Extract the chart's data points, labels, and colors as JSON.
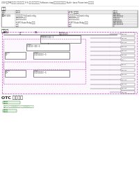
{
  "title_breadcrumb": "2023奔腾M9维修手册 发动机控制系统 V-6-引擎 发动机控制系统 Software-map关于维修说明及维修手册 Audi+ base Powertrain发动机控制",
  "section1_title": "概述",
  "section2_title": "电路图",
  "section3_title": "OTC 确认程序",
  "table_code": "P26F100",
  "table_desc": "后轮和发动机 FuCrank relay回路开路或者短路断路 KUPT State Relay关闭动作消除",
  "step1_label": "第步：",
  "step1_text": "如以下不能修复，请上报到售后服务技支中心。",
  "step2_label": "第步：",
  "bg_color": "#ffffff",
  "border_color": "#cccccc",
  "table_border": "#aaaaaa",
  "text_color": "#222222",
  "green_color": "#2d7a2d",
  "diagram_border": "#cc44cc",
  "diagram_fill": "#fdf8fe",
  "header_color": "#eeeeee"
}
